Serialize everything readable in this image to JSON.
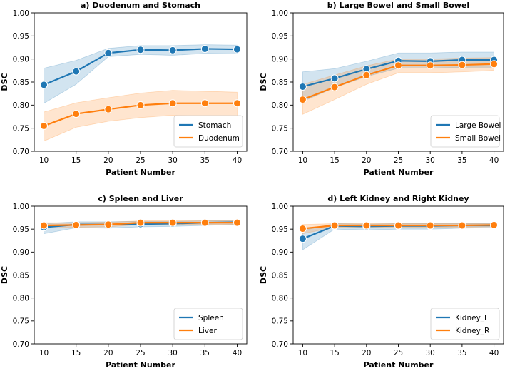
{
  "colors": {
    "blue": "#1f77b4",
    "orange": "#ff7f0e"
  },
  "chart_data": [
    {
      "type": "line",
      "title": "a) Duodenum and Stomach",
      "xlabel": "Patient Number",
      "ylabel": "DSC",
      "x": [
        10,
        15,
        20,
        25,
        30,
        35,
        40
      ],
      "ylim": [
        0.7,
        1.0
      ],
      "yticks": [
        "0.70",
        "0.75",
        "0.80",
        "0.85",
        "0.90",
        "0.95",
        "1.00"
      ],
      "legend_position": "bottom-right",
      "series": [
        {
          "name": "Stomach",
          "color": "#1f77b4",
          "values": [
            0.844,
            0.873,
            0.913,
            0.92,
            0.919,
            0.922,
            0.921
          ],
          "lower": [
            0.804,
            0.845,
            0.905,
            0.91,
            0.908,
            0.912,
            0.911
          ],
          "upper": [
            0.88,
            0.897,
            0.923,
            0.929,
            0.929,
            0.931,
            0.93
          ]
        },
        {
          "name": "Duodenum",
          "color": "#ff7f0e",
          "values": [
            0.755,
            0.781,
            0.791,
            0.8,
            0.804,
            0.804,
            0.804
          ],
          "lower": [
            0.722,
            0.752,
            0.765,
            0.773,
            0.778,
            0.775,
            0.775
          ],
          "upper": [
            0.785,
            0.805,
            0.816,
            0.826,
            0.832,
            0.83,
            0.828
          ]
        }
      ]
    },
    {
      "type": "line",
      "title": "b) Large Bowel and Small Bowel",
      "xlabel": "Patient Number",
      "ylabel": "DSC",
      "x": [
        10,
        15,
        20,
        25,
        30,
        35,
        40
      ],
      "ylim": [
        0.7,
        1.0
      ],
      "yticks": [
        "0.70",
        "0.75",
        "0.80",
        "0.85",
        "0.90",
        "0.95",
        "1.00"
      ],
      "legend_position": "bottom-right",
      "series": [
        {
          "name": "Large Bowel",
          "color": "#1f77b4",
          "values": [
            0.84,
            0.858,
            0.878,
            0.896,
            0.895,
            0.898,
            0.898
          ],
          "lower": [
            0.808,
            0.838,
            0.862,
            0.88,
            0.88,
            0.882,
            0.882
          ],
          "upper": [
            0.872,
            0.879,
            0.895,
            0.913,
            0.913,
            0.915,
            0.915
          ]
        },
        {
          "name": "Small Bowel",
          "color": "#ff7f0e",
          "values": [
            0.812,
            0.839,
            0.865,
            0.886,
            0.886,
            0.887,
            0.889
          ],
          "lower": [
            0.78,
            0.812,
            0.845,
            0.87,
            0.87,
            0.872,
            0.875
          ],
          "upper": [
            0.845,
            0.865,
            0.885,
            0.9,
            0.9,
            0.902,
            0.903
          ]
        }
      ]
    },
    {
      "type": "line",
      "title": "c) Spleen and Liver",
      "xlabel": "Patient Number",
      "ylabel": "DSC",
      "x": [
        10,
        15,
        20,
        25,
        30,
        35,
        40
      ],
      "ylim": [
        0.7,
        1.0
      ],
      "yticks": [
        "0.70",
        "0.75",
        "0.80",
        "0.85",
        "0.90",
        "0.95",
        "1.00"
      ],
      "legend_position": "bottom-right",
      "series": [
        {
          "name": "Spleen",
          "color": "#1f77b4",
          "values": [
            0.954,
            0.96,
            0.96,
            0.961,
            0.962,
            0.964,
            0.965
          ],
          "lower": [
            0.94,
            0.953,
            0.952,
            0.955,
            0.956,
            0.958,
            0.96
          ],
          "upper": [
            0.962,
            0.966,
            0.966,
            0.967,
            0.967,
            0.968,
            0.969
          ]
        },
        {
          "name": "Liver",
          "color": "#ff7f0e",
          "values": [
            0.958,
            0.959,
            0.96,
            0.964,
            0.964,
            0.964,
            0.964
          ],
          "lower": [
            0.952,
            0.954,
            0.955,
            0.96,
            0.96,
            0.96,
            0.96
          ],
          "upper": [
            0.964,
            0.964,
            0.965,
            0.968,
            0.968,
            0.968,
            0.968
          ]
        }
      ]
    },
    {
      "type": "line",
      "title": "d) Left Kidney and Right Kidney",
      "xlabel": "Patient Number",
      "ylabel": "DSC",
      "x": [
        10,
        15,
        20,
        25,
        30,
        35,
        40
      ],
      "ylim": [
        0.7,
        1.0
      ],
      "yticks": [
        "0.70",
        "0.75",
        "0.80",
        "0.85",
        "0.90",
        "0.95",
        "1.00"
      ],
      "legend_position": "bottom-right",
      "series": [
        {
          "name": "Kidney_L",
          "color": "#1f77b4",
          "values": [
            0.929,
            0.957,
            0.956,
            0.957,
            0.957,
            0.958,
            0.958
          ],
          "lower": [
            0.905,
            0.95,
            0.948,
            0.95,
            0.95,
            0.952,
            0.953
          ],
          "upper": [
            0.947,
            0.962,
            0.961,
            0.962,
            0.962,
            0.962,
            0.962
          ]
        },
        {
          "name": "Kidney_R",
          "color": "#ff7f0e",
          "values": [
            0.951,
            0.958,
            0.958,
            0.958,
            0.958,
            0.958,
            0.959
          ],
          "lower": [
            0.94,
            0.954,
            0.954,
            0.954,
            0.954,
            0.954,
            0.955
          ],
          "upper": [
            0.96,
            0.962,
            0.962,
            0.962,
            0.962,
            0.962,
            0.963
          ]
        }
      ]
    }
  ]
}
